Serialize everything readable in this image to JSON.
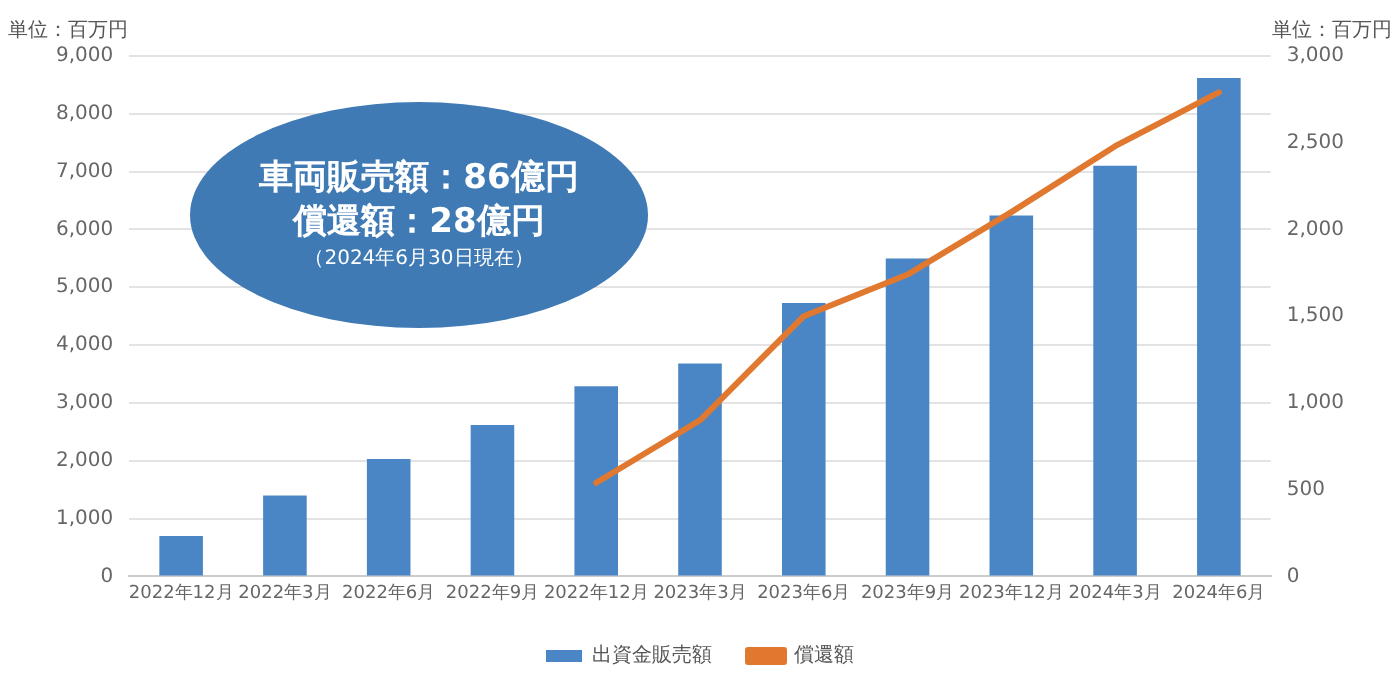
{
  "chart_data": {
    "type": "bar",
    "ylabel": "単位：百万円",
    "y2label": "単位：百万円",
    "categories": [
      "2022年12月",
      "2022年3月",
      "2022年6月",
      "2022年9月",
      "2022年12月",
      "2023年3月",
      "2023年6月",
      "2023年9月",
      "2023年12月",
      "2024年3月",
      "2024年6月"
    ],
    "series": [
      {
        "name": "出資金販売額",
        "color": "#4a86c5",
        "values": [
          700,
          1400,
          2030,
          2620,
          3290,
          3680,
          4730,
          5500,
          6240,
          7100,
          8620
        ]
      },
      {
        "name": "償還額",
        "type": "line",
        "axis": "y2",
        "color": "#e0782f",
        "values": [
          null,
          null,
          null,
          null,
          540,
          900,
          1500,
          1740,
          2100,
          2480,
          2790
        ]
      }
    ],
    "ylim": [
      0,
      9000
    ],
    "yticks": [
      0,
      {
        "value": 1000,
        "label": "1,000"
      },
      {
        "value": 2000,
        "label": "2,000"
      },
      {
        "value": 3000,
        "label": "3,000"
      },
      {
        "value": 4000,
        "label": "4,000"
      },
      {
        "value": 5000,
        "label": "5,000"
      },
      {
        "value": 6000,
        "label": "6,000"
      },
      {
        "value": 7000,
        "label": "7,000"
      },
      {
        "value": 8000,
        "label": "8,000"
      },
      {
        "value": 9000,
        "label": "9,000"
      }
    ],
    "y2lim": [
      0,
      3000
    ],
    "y2ticks": [
      0,
      500,
      {
        "value": 1000,
        "label": "1,000"
      },
      {
        "value": 1500,
        "label": "1,500"
      },
      {
        "value": 2000,
        "label": "2,000"
      },
      {
        "value": 2500,
        "label": "2,500"
      },
      {
        "value": 3000,
        "label": "3,000"
      }
    ],
    "grid": "y",
    "legend": "bottom",
    "marker": "none",
    "line_style": "solid",
    "annotations": [
      "車両販売額：86億円",
      "償還額：28億円",
      "（2024年6月30日現在）"
    ]
  }
}
